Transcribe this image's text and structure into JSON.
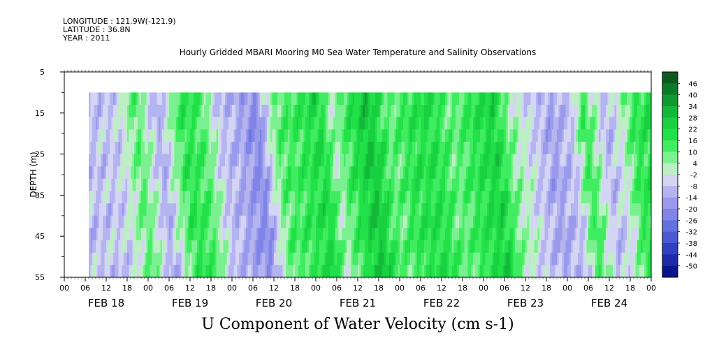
{
  "header": {
    "longitude": "LONGITUDE : 121.9W(-121.9)",
    "latitude": "LATITUDE : 36.8N",
    "year": "YEAR : 2011"
  },
  "chart_data": {
    "type": "heatmap",
    "title": "Hourly Gridded MBARI Mooring M0 Sea Water Temperature and Salinity Observations",
    "xlabel": "U Component of Water Velocity (cm s-1)",
    "ylabel": "DEPTH (m)",
    "ylim": [
      55,
      5
    ],
    "yticks": [
      "5",
      "15",
      "25",
      "35",
      "45",
      "55"
    ],
    "hour_ticks": [
      "00",
      "06",
      "12",
      "18",
      "00",
      "06",
      "12",
      "18",
      "00",
      "06",
      "12",
      "18",
      "00",
      "06",
      "12",
      "18",
      "00",
      "06",
      "12",
      "18",
      "00",
      "06",
      "12",
      "18",
      "00",
      "06",
      "12",
      "18",
      "00"
    ],
    "days": [
      "FEB 18",
      "FEB 19",
      "FEB 20",
      "FEB 21",
      "FEB 22",
      "FEB 23",
      "FEB 24"
    ],
    "data_start_hour": 7,
    "data_depth_range": [
      10,
      55
    ],
    "colorbar_labels": [
      "46",
      "40",
      "34",
      "28",
      "22",
      "16",
      "10",
      "4",
      "-2",
      "-8",
      "-14",
      "-20",
      "-26",
      "-32",
      "-38",
      "-44",
      "-50"
    ],
    "colorbar_colors": [
      "#0a5a20",
      "#0d7a28",
      "#109a30",
      "#14b838",
      "#18d040",
      "#22e048",
      "#40ec60",
      "#7af090",
      "#bcf0c4",
      "#d4d4f4",
      "#b4b4f0",
      "#9a9aec",
      "#7f84e6",
      "#6470de",
      "#4a58d2",
      "#3040c0",
      "#1e2aa8",
      "#0c148a"
    ],
    "time_profile": [
      {
        "hour": 7,
        "value": -8
      },
      {
        "hour": 14,
        "value": -6
      },
      {
        "hour": 20,
        "value": 10
      },
      {
        "hour": 26,
        "value": -12
      },
      {
        "hour": 33,
        "value": 16
      },
      {
        "hour": 38,
        "value": 12
      },
      {
        "hour": 44,
        "value": -8
      },
      {
        "hour": 50,
        "value": -14
      },
      {
        "hour": 54,
        "value": -20
      },
      {
        "hour": 60,
        "value": 10
      },
      {
        "hour": 66,
        "value": 14
      },
      {
        "hour": 72,
        "value": 20
      },
      {
        "hour": 76,
        "value": 2
      },
      {
        "hour": 80,
        "value": 14
      },
      {
        "hour": 86,
        "value": 26
      },
      {
        "hour": 92,
        "value": 8
      },
      {
        "hour": 98,
        "value": 16
      },
      {
        "hour": 104,
        "value": 18
      },
      {
        "hour": 110,
        "value": 8
      },
      {
        "hour": 116,
        "value": 16
      },
      {
        "hour": 122,
        "value": 22
      },
      {
        "hour": 126,
        "value": 6
      },
      {
        "hour": 132,
        "value": -4
      },
      {
        "hour": 138,
        "value": -14
      },
      {
        "hour": 144,
        "value": -8
      },
      {
        "hour": 148,
        "value": 14
      },
      {
        "hour": 154,
        "value": -10
      },
      {
        "hour": 158,
        "value": -2
      },
      {
        "hour": 162,
        "value": 14
      },
      {
        "hour": 168,
        "value": 18
      }
    ]
  }
}
